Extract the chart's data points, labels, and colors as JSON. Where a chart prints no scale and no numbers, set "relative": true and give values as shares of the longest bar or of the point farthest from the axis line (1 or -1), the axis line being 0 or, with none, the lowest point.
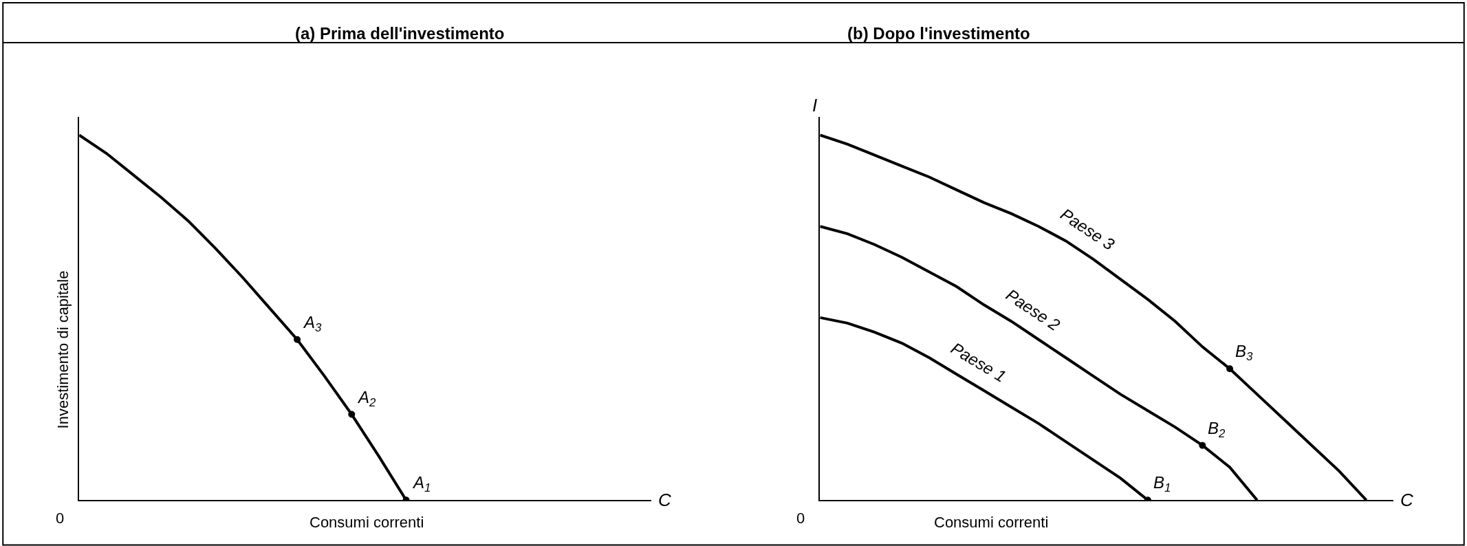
{
  "chart_data": [
    {
      "type": "line",
      "title": "(a) Prima dell'investimento",
      "xlabel": "Consumi correnti",
      "ylabel": "Investimento di capitale",
      "relative": true,
      "marker": "none",
      "line_style": "solid",
      "categories": [
        null,
        null,
        null,
        null,
        null,
        null,
        null,
        null,
        null,
        null,
        null,
        null,
        null,
        null,
        null,
        null,
        null,
        null,
        null,
        null,
        null,
        null
      ],
      "series": [
        {
          "color": "#000000",
          "values": [
            1,
            0.95,
            0.89,
            0.83,
            0.765,
            0.69,
            0.61,
            0.525,
            0.44,
            0.34,
            0.235,
            0.12,
            0,
            null,
            null,
            null,
            null,
            null,
            null,
            null,
            null,
            null
          ]
        }
      ],
      "annotations": [
        "0",
        "C",
        "A$_{3}$",
        "A$_{2}$",
        "A$_{1}$"
      ]
    },
    {
      "type": "line",
      "title": "(b) Dopo l'investimento",
      "xlabel": "Consumi correnti",
      "relative": true,
      "marker": "none",
      "line_style": "solid",
      "categories": [
        null,
        null,
        null,
        null,
        null,
        null,
        null,
        null,
        null,
        null,
        null,
        null,
        null,
        null,
        null,
        null,
        null,
        null,
        null,
        null,
        null,
        null
      ],
      "series": [
        {
          "name": "Paese 1",
          "color": "#000000",
          "values": [
            0.5,
            0.485,
            0.46,
            0.43,
            0.39,
            0.345,
            0.3,
            0.255,
            0.21,
            0.16,
            0.11,
            0.06,
            0,
            null,
            null,
            null,
            null,
            null,
            null,
            null,
            null,
            null
          ]
        },
        {
          "name": "Paese 2",
          "color": "#000000",
          "values": [
            0.75,
            0.73,
            0.7,
            0.665,
            0.625,
            0.585,
            0.535,
            0.49,
            0.44,
            0.39,
            0.34,
            0.29,
            0.245,
            0.2,
            0.15,
            0.09,
            0,
            null,
            null,
            null,
            null,
            null
          ]
        },
        {
          "name": "Paese 3",
          "color": "#000000",
          "values": [
            1,
            0.975,
            0.945,
            0.915,
            0.885,
            0.85,
            0.815,
            0.785,
            0.75,
            0.71,
            0.66,
            0.605,
            0.55,
            0.49,
            0.42,
            0.36,
            0.29,
            0.22,
            0.15,
            0.08,
            0,
            null
          ]
        }
      ],
      "annotations": [
        "0",
        "C",
        "I",
        "B$_{3}$",
        "B$_{2}$",
        "B$_{1}$"
      ]
    }
  ]
}
